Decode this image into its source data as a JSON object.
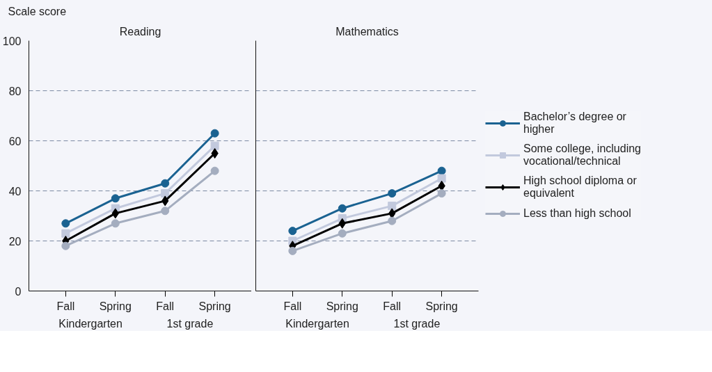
{
  "chart_data": [
    {
      "type": "line",
      "title": "Reading",
      "ylabel": "Scale score",
      "categories": [
        "Fall",
        "Spring",
        "Fall",
        "Spring"
      ],
      "ylim": [
        0,
        100
      ],
      "yticks": [
        0,
        20,
        40,
        60,
        80,
        100
      ],
      "grid": "y",
      "annotations": [
        "Kindergarten",
        "1st grade"
      ],
      "series": [
        {
          "color": "#1a6291",
          "marker": "circle",
          "values": [
            27,
            37,
            43,
            63
          ]
        },
        {
          "color": "#c2c9dd",
          "marker": "square",
          "values": [
            23,
            33,
            39,
            58
          ]
        },
        {
          "color": "#000000",
          "marker": "diamond",
          "values": [
            20,
            31,
            36,
            55
          ]
        },
        {
          "color": "#a4adbf",
          "marker": "circle",
          "values": [
            18,
            27,
            32,
            48
          ]
        }
      ]
    },
    {
      "type": "line",
      "title": "Mathematics",
      "categories": [
        "Fall",
        "Spring",
        "Fall",
        "Spring"
      ],
      "ylim": [
        0,
        100
      ],
      "yticks": [
        0,
        20,
        40,
        60,
        80,
        100
      ],
      "grid": "y",
      "legend": "right",
      "tick_labels": "x",
      "annotations": [
        "Kindergarten",
        "1st grade"
      ],
      "series": [
        {
          "name": "Bachelor’s degree or higher",
          "color": "#1a6291",
          "marker": "circle",
          "values": [
            24,
            33,
            39,
            48
          ]
        },
        {
          "name": "Some college, including vocational/technical",
          "color": "#c2c9dd",
          "marker": "square",
          "values": [
            20,
            29,
            34,
            45
          ]
        },
        {
          "name": "High school diploma or equivalent",
          "color": "#000000",
          "marker": "diamond",
          "values": [
            18,
            27,
            31,
            42
          ]
        },
        {
          "name": "Less than high school",
          "color": "#a4adbf",
          "marker": "circle",
          "values": [
            16,
            23,
            28,
            39
          ]
        }
      ]
    }
  ]
}
